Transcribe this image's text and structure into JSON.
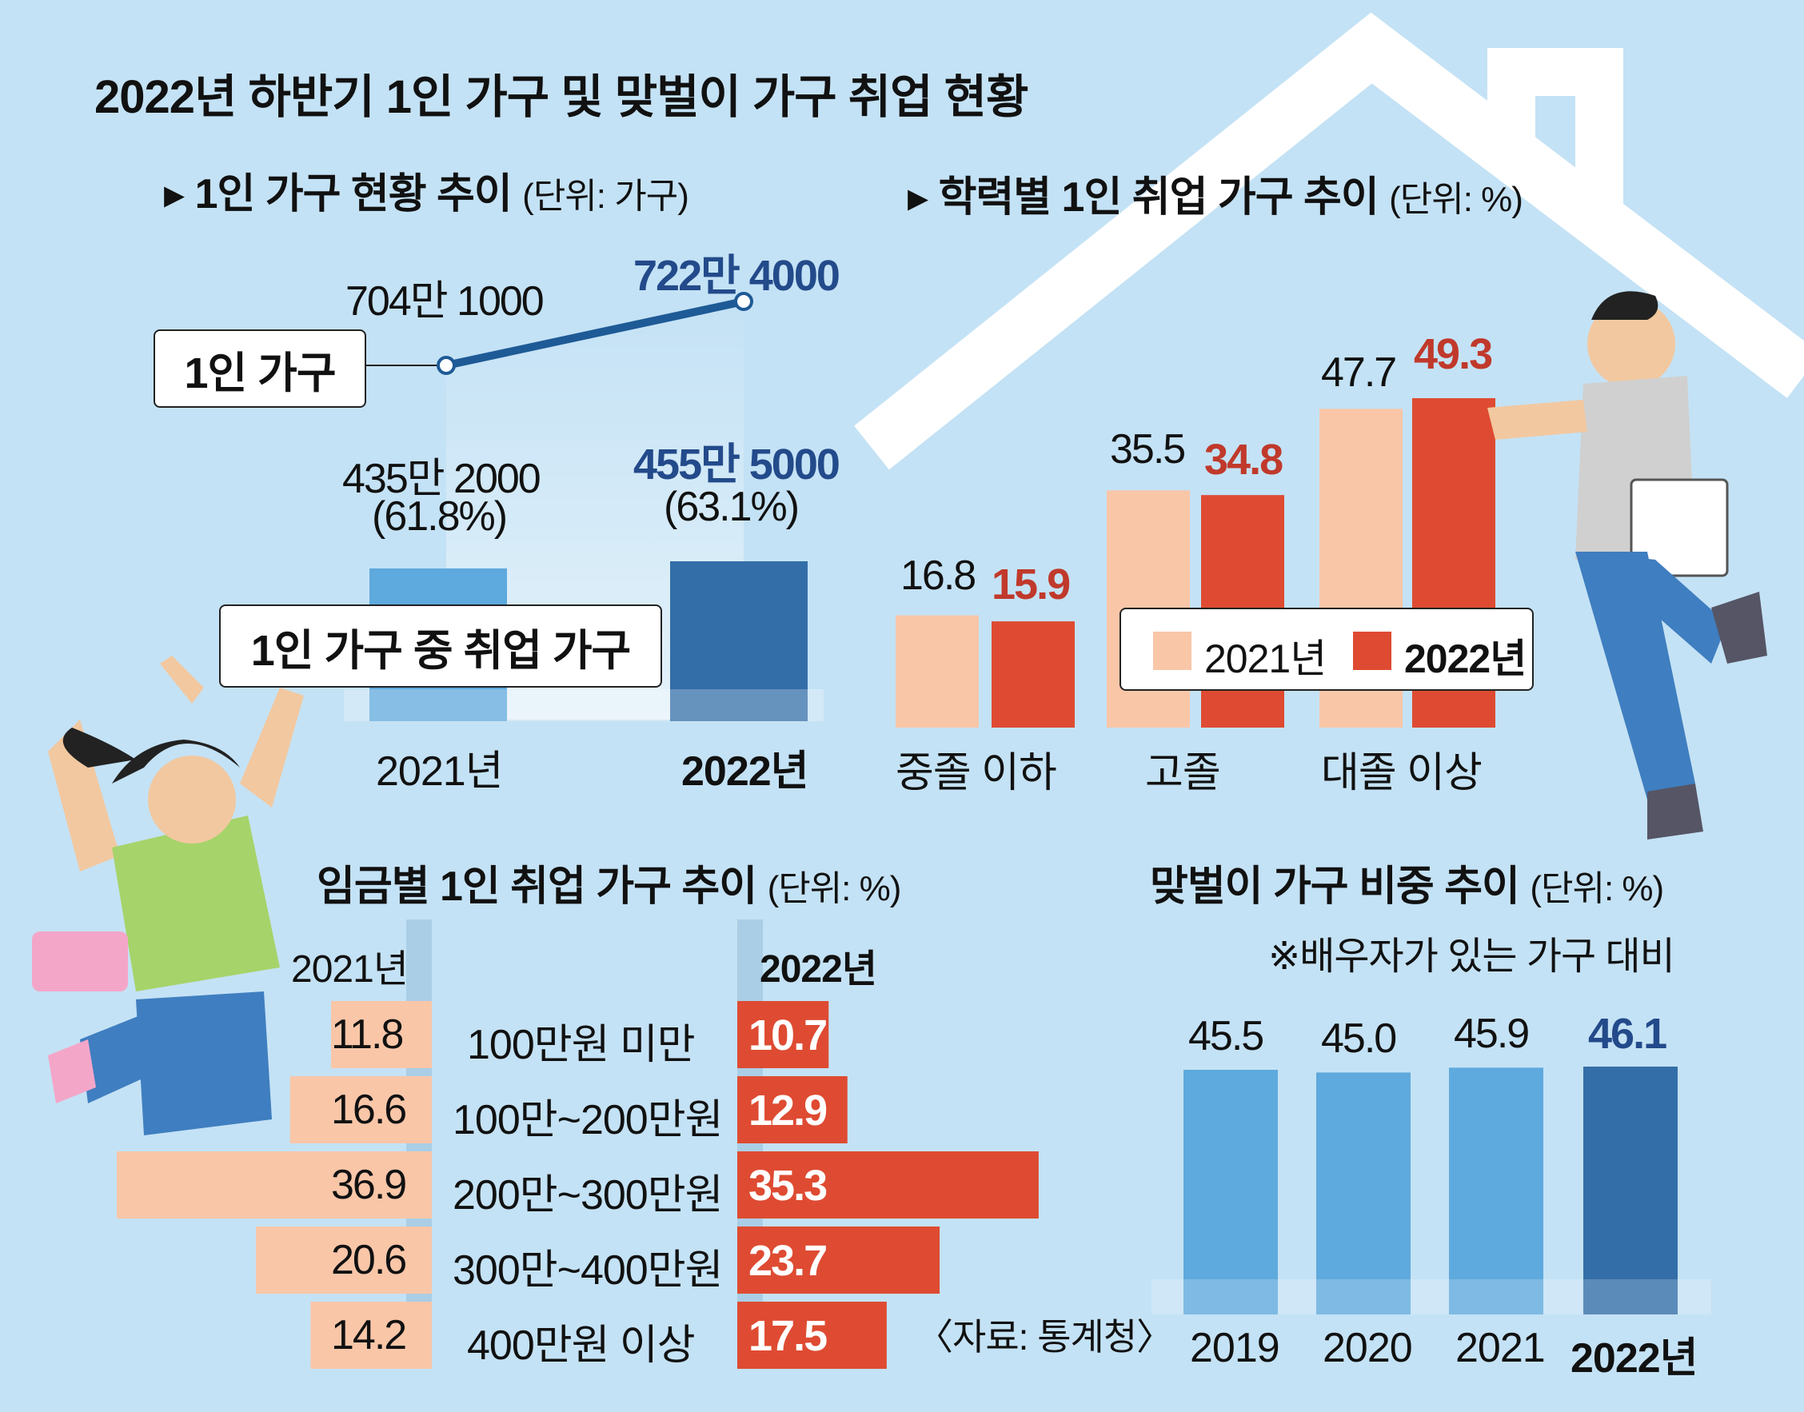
{
  "title": "2022년 하반기 1인 가구 및 맞벌이 가구 취업 현황",
  "colors": {
    "background": "#c4e2f5",
    "house_outline": "#ffffff",
    "light_blue": "#5ea9dd",
    "dark_blue": "#336ea8",
    "peach": "#f9c6a8",
    "red": "#de4b32",
    "red_text": "#c0392b",
    "navy_text": "#234a8a"
  },
  "section1": {
    "heading": "1인 가구 현황 추이",
    "unit": "(단위: 가구)",
    "line_label": "1인 가구",
    "bar_label": "1인 가구 중 취업 가구",
    "total_2021": "704만 1000",
    "total_2022": "722만 4000",
    "employed_2021": "435만 2000",
    "employed_2022": "455만 5000",
    "share_2021": "(61.8%)",
    "share_2022": "(63.1%)",
    "year_2021": "2021년",
    "year_2022": "2022년"
  },
  "section2": {
    "heading": "학력별 1인 취업 가구 추이",
    "unit": "(단위: %)",
    "legend_2021": "2021년",
    "legend_2022": "2022년",
    "labels": [
      {
        "v2021": "16.8",
        "v2022": "15.9",
        "cat": "중졸 이하"
      },
      {
        "v2021": "35.5",
        "v2022": "34.8",
        "cat": "고졸"
      },
      {
        "v2021": "47.7",
        "v2022": "49.3",
        "cat": "대졸 이상"
      }
    ]
  },
  "section3": {
    "heading": "임금별 1인 취업 가구 추이",
    "unit": "(단위: %)",
    "col_2021": "2021년",
    "col_2022": "2022년",
    "rows": [
      {
        "v2021": "11.8",
        "label": "100만원 미만",
        "v2022": "10.7"
      },
      {
        "v2021": "16.6",
        "label": "100만~200만원",
        "v2022": "12.9"
      },
      {
        "v2021": "36.9",
        "label": "200만~300만원",
        "v2022": "35.3"
      },
      {
        "v2021": "20.6",
        "label": "300만~400만원",
        "v2022": "23.7"
      },
      {
        "v2021": "14.2",
        "label": "400만원 이상",
        "v2022": "17.5"
      }
    ]
  },
  "section4": {
    "heading": "맞벌이 가구 비중 추이",
    "unit": "(단위: %)",
    "note": "※배우자가 있는 가구 대비",
    "labels": [
      {
        "year": "2019",
        "value": "45.5"
      },
      {
        "year": "2020",
        "value": "45.0"
      },
      {
        "year": "2021",
        "value": "45.9"
      },
      {
        "year": "2022년",
        "value": "46.1"
      }
    ]
  },
  "source": "〈자료: 통계청〉",
  "chart_data": [
    {
      "type": "line",
      "title": "1인 가구 현황 추이",
      "unit": "가구",
      "series": [
        {
          "name": "1인 가구",
          "values": [
            7041000,
            7224000
          ]
        }
      ],
      "x": [
        "2021년",
        "2022년"
      ]
    },
    {
      "type": "bar",
      "title": "1인 가구 중 취업 가구",
      "categories": [
        "2021년",
        "2022년"
      ],
      "series": [
        {
          "name": "1인 가구 중 취업 가구",
          "values": [
            4352000,
            4555000
          ]
        },
        {
          "name": "share_percent",
          "values": [
            61.8,
            63.1
          ]
        }
      ]
    },
    {
      "type": "bar",
      "title": "학력별 1인 취업 가구 추이",
      "unit": "%",
      "categories": [
        "중졸 이하",
        "고졸",
        "대졸 이상"
      ],
      "series": [
        {
          "name": "2021년",
          "values": [
            16.8,
            35.5,
            47.7
          ]
        },
        {
          "name": "2022년",
          "values": [
            15.9,
            34.8,
            49.3
          ]
        }
      ]
    },
    {
      "type": "bar",
      "title": "임금별 1인 취업 가구 추이",
      "unit": "%",
      "orientation": "horizontal",
      "categories": [
        "100만원 미만",
        "100만~200만원",
        "200만~300만원",
        "300만~400만원",
        "400만원 이상"
      ],
      "series": [
        {
          "name": "2021년",
          "values": [
            11.8,
            16.6,
            36.9,
            20.6,
            14.2
          ]
        },
        {
          "name": "2022년",
          "values": [
            10.7,
            12.9,
            35.3,
            23.7,
            17.5
          ]
        }
      ]
    },
    {
      "type": "bar",
      "title": "맞벌이 가구 비중 추이",
      "unit": "%",
      "categories": [
        "2019",
        "2020",
        "2021",
        "2022년"
      ],
      "values": [
        45.5,
        45.0,
        45.9,
        46.1
      ]
    }
  ]
}
